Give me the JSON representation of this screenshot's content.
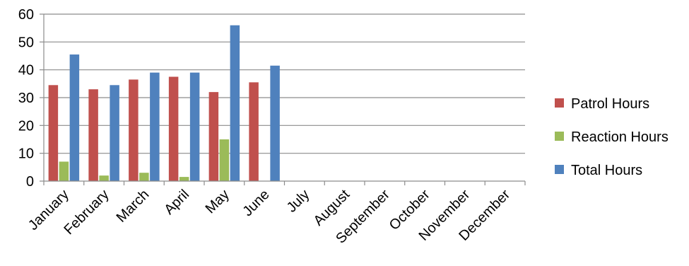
{
  "chart_data": {
    "type": "bar",
    "categories": [
      "January",
      "February",
      "March",
      "April",
      "May",
      "June",
      "July",
      "August",
      "September",
      "October",
      "November",
      "December"
    ],
    "series": [
      {
        "name": "Patrol Hours",
        "color": "#C0504D",
        "values": [
          34.5,
          33,
          36.5,
          37.5,
          32,
          35.5,
          null,
          null,
          null,
          null,
          null,
          null
        ]
      },
      {
        "name": "Reaction Hours",
        "color": "#9BBB59",
        "values": [
          7,
          2,
          3,
          1.5,
          15,
          null,
          null,
          null,
          null,
          null,
          null,
          null
        ]
      },
      {
        "name": "Total Hours",
        "color": "#4F81BD",
        "values": [
          45.5,
          34.5,
          39,
          39,
          56,
          41.5,
          null,
          null,
          null,
          null,
          null,
          null
        ]
      }
    ],
    "y_ticks": [
      0,
      10,
      20,
      30,
      40,
      50,
      60
    ],
    "ylim": [
      0,
      60
    ],
    "grid": true,
    "legend_position": "right",
    "title": "",
    "xlabel": "",
    "ylabel": ""
  }
}
